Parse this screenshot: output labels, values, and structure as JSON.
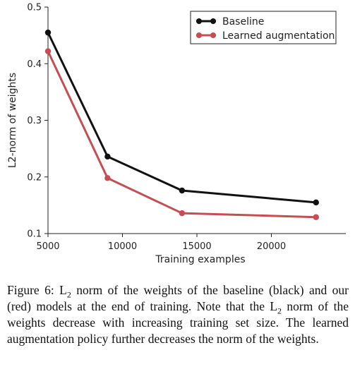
{
  "chart_data": {
    "type": "line",
    "title": "",
    "xlabel": "Training examples",
    "ylabel": "L2-norm of weights",
    "xlim": [
      5000,
      25000
    ],
    "ylim": [
      0.1,
      0.5
    ],
    "xticks": [
      5000,
      10000,
      15000,
      20000
    ],
    "yticks": [
      0.1,
      0.2,
      0.3,
      0.4,
      0.5
    ],
    "xtick_labels": [
      "5000",
      "10000",
      "15000",
      "20000"
    ],
    "ytick_labels": [
      "0.1",
      "0.2",
      "0.3",
      "0.4",
      "0.5"
    ],
    "grid": false,
    "legend_position": "top-right",
    "series": [
      {
        "name": "Baseline",
        "color": "#111111",
        "x": [
          5000,
          9000,
          14000,
          23000
        ],
        "y": [
          0.455,
          0.236,
          0.176,
          0.155
        ]
      },
      {
        "name": "Learned augmentation",
        "color": "#c44e52",
        "x": [
          5000,
          9000,
          14000,
          23000
        ],
        "y": [
          0.422,
          0.198,
          0.136,
          0.129
        ]
      }
    ]
  },
  "caption": {
    "prefix": "Figure 6: L",
    "sub1": "2",
    "mid": " norm of the weights of the baseline (black) and our (red) models at the end of training. Note that the L",
    "sub2": "2",
    "suffix": " norm of the weights decrease with increasing training set size. The learned augmentation policy further decreases the norm of the weights."
  }
}
